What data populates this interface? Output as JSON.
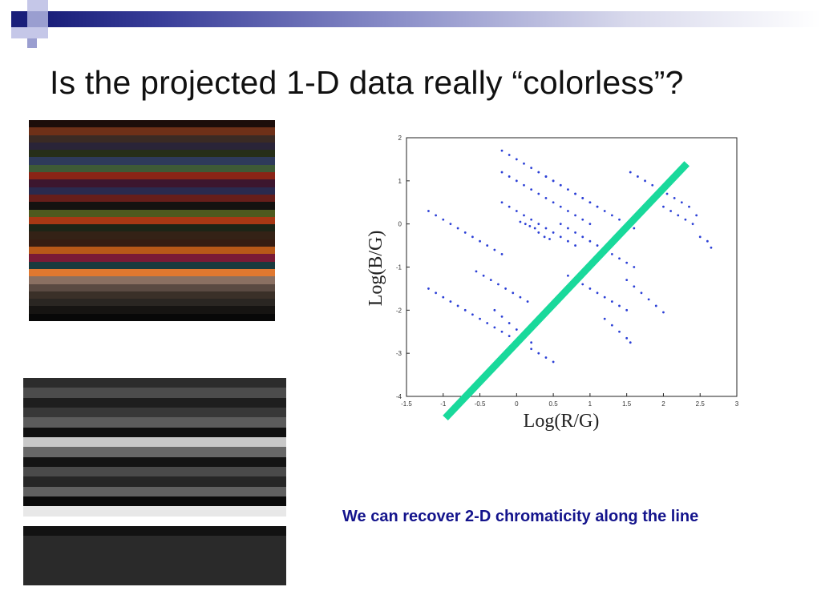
{
  "slide": {
    "title": "Is the projected 1-D data really “colorless”?",
    "caption": "We can recover 2-D chromaticity along the line",
    "accent_color": "#1a1f7a",
    "caption_color": "#14148c"
  },
  "color_swatch": {
    "stripes": [
      "#1c0d0a",
      "#6e3018",
      "#3a2a24",
      "#2a2438",
      "#262e18",
      "#2e3a5a",
      "#3e5a36",
      "#8a2416",
      "#3c162e",
      "#2a2a4e",
      "#661e1a",
      "#141210",
      "#4e5a1e",
      "#a83814",
      "#1e2416",
      "#342216",
      "#361c12",
      "#b85818",
      "#7a1a36",
      "#1a3a3e",
      "#e07830",
      "#8a7062",
      "#5a4a42",
      "#3a3028",
      "#2a2622",
      "#161412",
      "#080808"
    ]
  },
  "gray_swatch": {
    "stripes": [
      "#2c2c2c",
      "#4c4c4c",
      "#1e1e1e",
      "#383838",
      "#5c5c5c",
      "#101010",
      "#c8c8c8",
      "#686868",
      "#141414",
      "#4a4a4a",
      "#262626",
      "#606060",
      "#0a0a0a",
      "#e8e8e8",
      "#ffffff",
      "#121212",
      "#2a2a2a",
      "#2a2a2a",
      "#2a2a2a",
      "#2a2a2a",
      "#2a2a2a"
    ]
  },
  "chart_data": {
    "type": "scatter",
    "xlabel": "Log(R/G)",
    "ylabel": "Log(B/G)",
    "xlim": [
      -1.5,
      3
    ],
    "ylim": [
      -4,
      2
    ],
    "x_ticks": [
      "-1.5",
      "-1",
      "-0.5",
      "0",
      "0.5",
      "1",
      "1.5",
      "2",
      "2.5",
      "3"
    ],
    "x_tick_values": [
      -1.5,
      -1,
      -0.5,
      0,
      0.5,
      1,
      1.5,
      2,
      2.5,
      3
    ],
    "y_ticks": [
      "-4",
      "-3",
      "-2",
      "-1",
      "0",
      "1",
      "2"
    ],
    "y_tick_values": [
      -4,
      -3,
      -2,
      -1,
      0,
      1,
      2
    ],
    "grid": false,
    "point_color": "#2b3fd6",
    "line_color": "#19d99b",
    "series": [
      {
        "x": [
          -0.2,
          -0.1,
          0.0,
          0.1,
          0.2,
          0.3,
          0.4,
          0.5,
          0.6,
          0.8,
          0.9,
          1.0,
          1.1
        ],
        "y": [
          1.7,
          1.6,
          1.5,
          1.4,
          1.3,
          1.2,
          1.1,
          1.0,
          0.9,
          0.7,
          0.6,
          0.5,
          0.4
        ]
      },
      {
        "x": [
          -0.2,
          -0.1,
          0.0,
          0.1,
          0.2,
          0.3,
          0.4,
          0.5,
          0.6,
          0.7,
          0.8,
          0.9,
          1.0
        ],
        "y": [
          1.2,
          1.1,
          1.0,
          0.9,
          0.8,
          0.7,
          0.6,
          0.5,
          0.4,
          0.3,
          0.2,
          0.1,
          0.0
        ]
      },
      {
        "x": [
          0.4,
          0.5,
          0.6,
          0.7,
          0.8,
          0.9,
          1.0,
          1.1,
          1.2,
          1.3,
          1.4,
          1.5,
          1.6
        ],
        "y": [
          1.1,
          1.0,
          0.9,
          0.8,
          0.7,
          0.6,
          0.5,
          0.4,
          0.3,
          0.2,
          0.1,
          0.0,
          -0.1
        ]
      },
      {
        "x": [
          1.55,
          1.65,
          1.75,
          1.85,
          1.95,
          2.05,
          2.15,
          2.25,
          2.35,
          2.45
        ],
        "y": [
          1.2,
          1.1,
          1.0,
          0.9,
          0.8,
          0.7,
          0.6,
          0.5,
          0.4,
          0.2
        ]
      },
      {
        "x": [
          2.0,
          2.1,
          2.2,
          2.3,
          2.4,
          2.5,
          2.6,
          2.65
        ],
        "y": [
          0.4,
          0.3,
          0.2,
          0.1,
          0.0,
          -0.3,
          -0.4,
          -0.55
        ]
      },
      {
        "x": [
          -0.2,
          -0.1,
          0.0,
          0.1,
          0.2,
          0.3,
          0.4,
          0.5,
          0.6,
          0.7,
          0.8
        ],
        "y": [
          0.5,
          0.4,
          0.3,
          0.2,
          0.1,
          0.0,
          -0.1,
          -0.2,
          -0.3,
          -0.4,
          -0.5
        ]
      },
      {
        "x": [
          0.05,
          0.12,
          0.18,
          0.25,
          0.3,
          0.38,
          0.45
        ],
        "y": [
          0.05,
          0.0,
          -0.05,
          -0.1,
          -0.2,
          -0.3,
          -0.35
        ]
      },
      {
        "x": [
          0.6,
          0.7,
          0.8,
          0.9,
          1.0,
          1.1,
          1.2,
          1.3,
          1.4,
          1.5,
          1.6
        ],
        "y": [
          0.0,
          -0.1,
          -0.2,
          -0.3,
          -0.4,
          -0.5,
          -0.6,
          -0.7,
          -0.8,
          -0.9,
          -1.0
        ]
      },
      {
        "x": [
          -1.2,
          -1.1,
          -1.0,
          -0.9,
          -0.8,
          -0.7,
          -0.6,
          -0.5,
          -0.4,
          -0.3,
          -0.2
        ],
        "y": [
          0.3,
          0.2,
          0.1,
          0.0,
          -0.1,
          -0.2,
          -0.3,
          -0.4,
          -0.5,
          -0.6,
          -0.7
        ]
      },
      {
        "x": [
          -0.55,
          -0.45,
          -0.35,
          -0.25,
          -0.15,
          -0.05,
          0.05,
          0.15
        ],
        "y": [
          -1.1,
          -1.2,
          -1.3,
          -1.4,
          -1.5,
          -1.6,
          -1.7,
          -1.8
        ]
      },
      {
        "x": [
          0.7,
          0.8,
          0.9,
          1.0,
          1.1,
          1.2,
          1.3,
          1.4,
          1.5
        ],
        "y": [
          -1.2,
          -1.3,
          -1.4,
          -1.5,
          -1.6,
          -1.7,
          -1.8,
          -1.9,
          -2.0
        ]
      },
      {
        "x": [
          1.5,
          1.6,
          1.7,
          1.8,
          1.9,
          2.0
        ],
        "y": [
          -1.3,
          -1.45,
          -1.6,
          -1.75,
          -1.9,
          -2.05
        ]
      },
      {
        "x": [
          -1.2,
          -1.1,
          -1.0,
          -0.9,
          -0.8,
          -0.7,
          -0.6,
          -0.5,
          -0.4,
          -0.3,
          -0.2,
          -0.1
        ],
        "y": [
          -1.5,
          -1.6,
          -1.7,
          -1.8,
          -1.9,
          -2.0,
          -2.1,
          -2.2,
          -2.3,
          -2.4,
          -2.5,
          -2.6
        ]
      },
      {
        "x": [
          -0.3,
          -0.2,
          -0.1,
          0.0,
          0.1,
          0.2
        ],
        "y": [
          -2.0,
          -2.15,
          -2.3,
          -2.45,
          -2.6,
          -2.75
        ]
      },
      {
        "x": [
          0.2,
          0.3,
          0.4,
          0.5
        ],
        "y": [
          -2.9,
          -3.0,
          -3.1,
          -3.2
        ]
      },
      {
        "x": [
          1.2,
          1.3,
          1.4,
          1.5,
          1.55
        ],
        "y": [
          -2.2,
          -2.35,
          -2.5,
          -2.65,
          -2.75
        ]
      }
    ],
    "fit_line": {
      "x": [
        -0.97,
        2.32
      ],
      "y": [
        -4.5,
        1.4
      ]
    }
  }
}
